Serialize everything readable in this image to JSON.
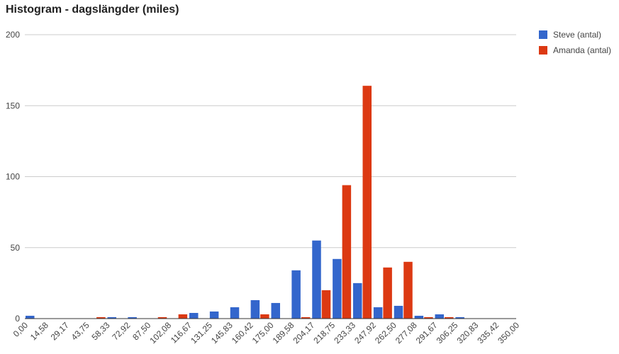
{
  "chart_data": {
    "type": "bar",
    "title": "Histogram - dagslängder (miles)",
    "xlabel": "",
    "ylabel": "",
    "ylim": [
      0,
      200
    ],
    "yticks": [
      "0",
      "50",
      "100",
      "150",
      "200"
    ],
    "xticks": [
      "0,00",
      "14,58",
      "29,17",
      "43,75",
      "58,33",
      "72,92",
      "87,50",
      "102,08",
      "116,67",
      "131,25",
      "145,83",
      "160,42",
      "175,00",
      "189,58",
      "204,17",
      "218,75",
      "233,33",
      "247,92",
      "262,50",
      "277,08",
      "291,67",
      "306,25",
      "320,83",
      "335,42",
      "350,00"
    ],
    "grid": true,
    "legend_position": "right",
    "series": [
      {
        "name": "Steve (antal)",
        "color": "#3366cc",
        "values": [
          2,
          0,
          0,
          0,
          1,
          1,
          0,
          0,
          4,
          5,
          8,
          13,
          11,
          34,
          55,
          42,
          25,
          8,
          9,
          2,
          3,
          1,
          0,
          0
        ]
      },
      {
        "name": "Amanda (antal)",
        "color": "#dc3912",
        "values": [
          0,
          0,
          0,
          1,
          0,
          0,
          1,
          3,
          0,
          0,
          0,
          3,
          0,
          1,
          20,
          94,
          164,
          36,
          40,
          1,
          1,
          0,
          0,
          0
        ]
      }
    ]
  }
}
